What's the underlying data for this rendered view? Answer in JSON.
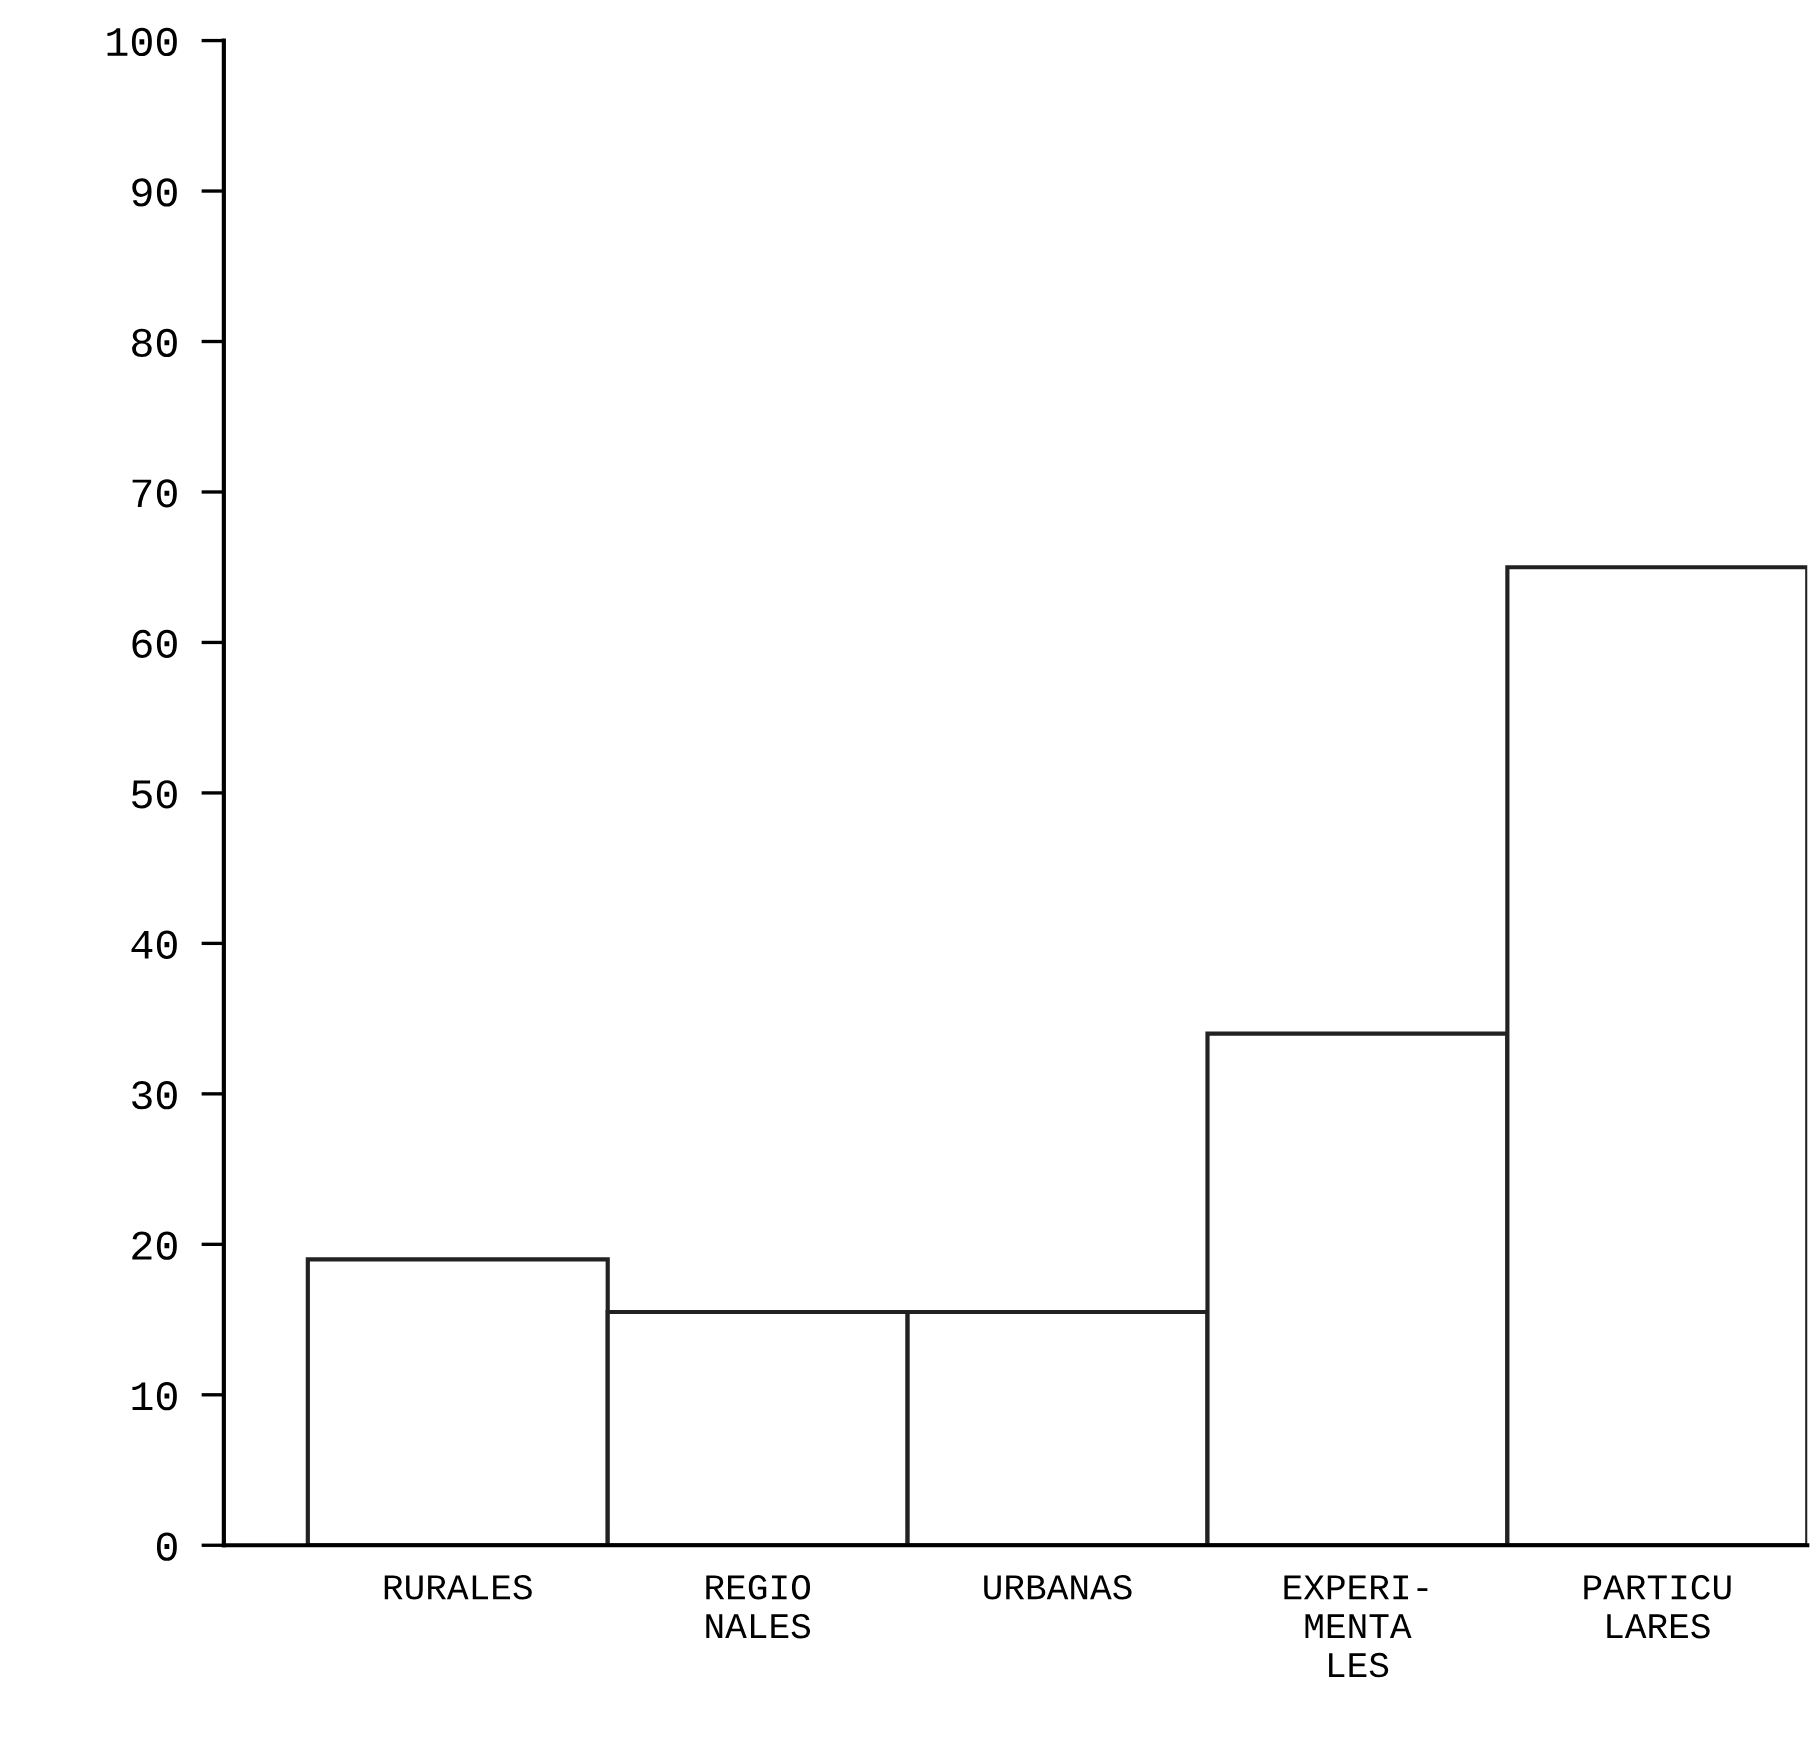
{
  "chart_data": {
    "type": "bar",
    "categories": [
      "RURALES",
      "REGIO\nNALES",
      "URBANAS",
      "EXPERI-\nMENTA\nLES",
      "PARTICU\nLARES"
    ],
    "values": [
      19,
      15.5,
      15.5,
      34,
      65
    ],
    "color": "#ffffff",
    "ylim": [
      0,
      100
    ],
    "yticks": [
      0,
      10,
      20,
      30,
      40,
      50,
      60,
      70,
      80,
      90,
      100
    ],
    "grid": false
  }
}
